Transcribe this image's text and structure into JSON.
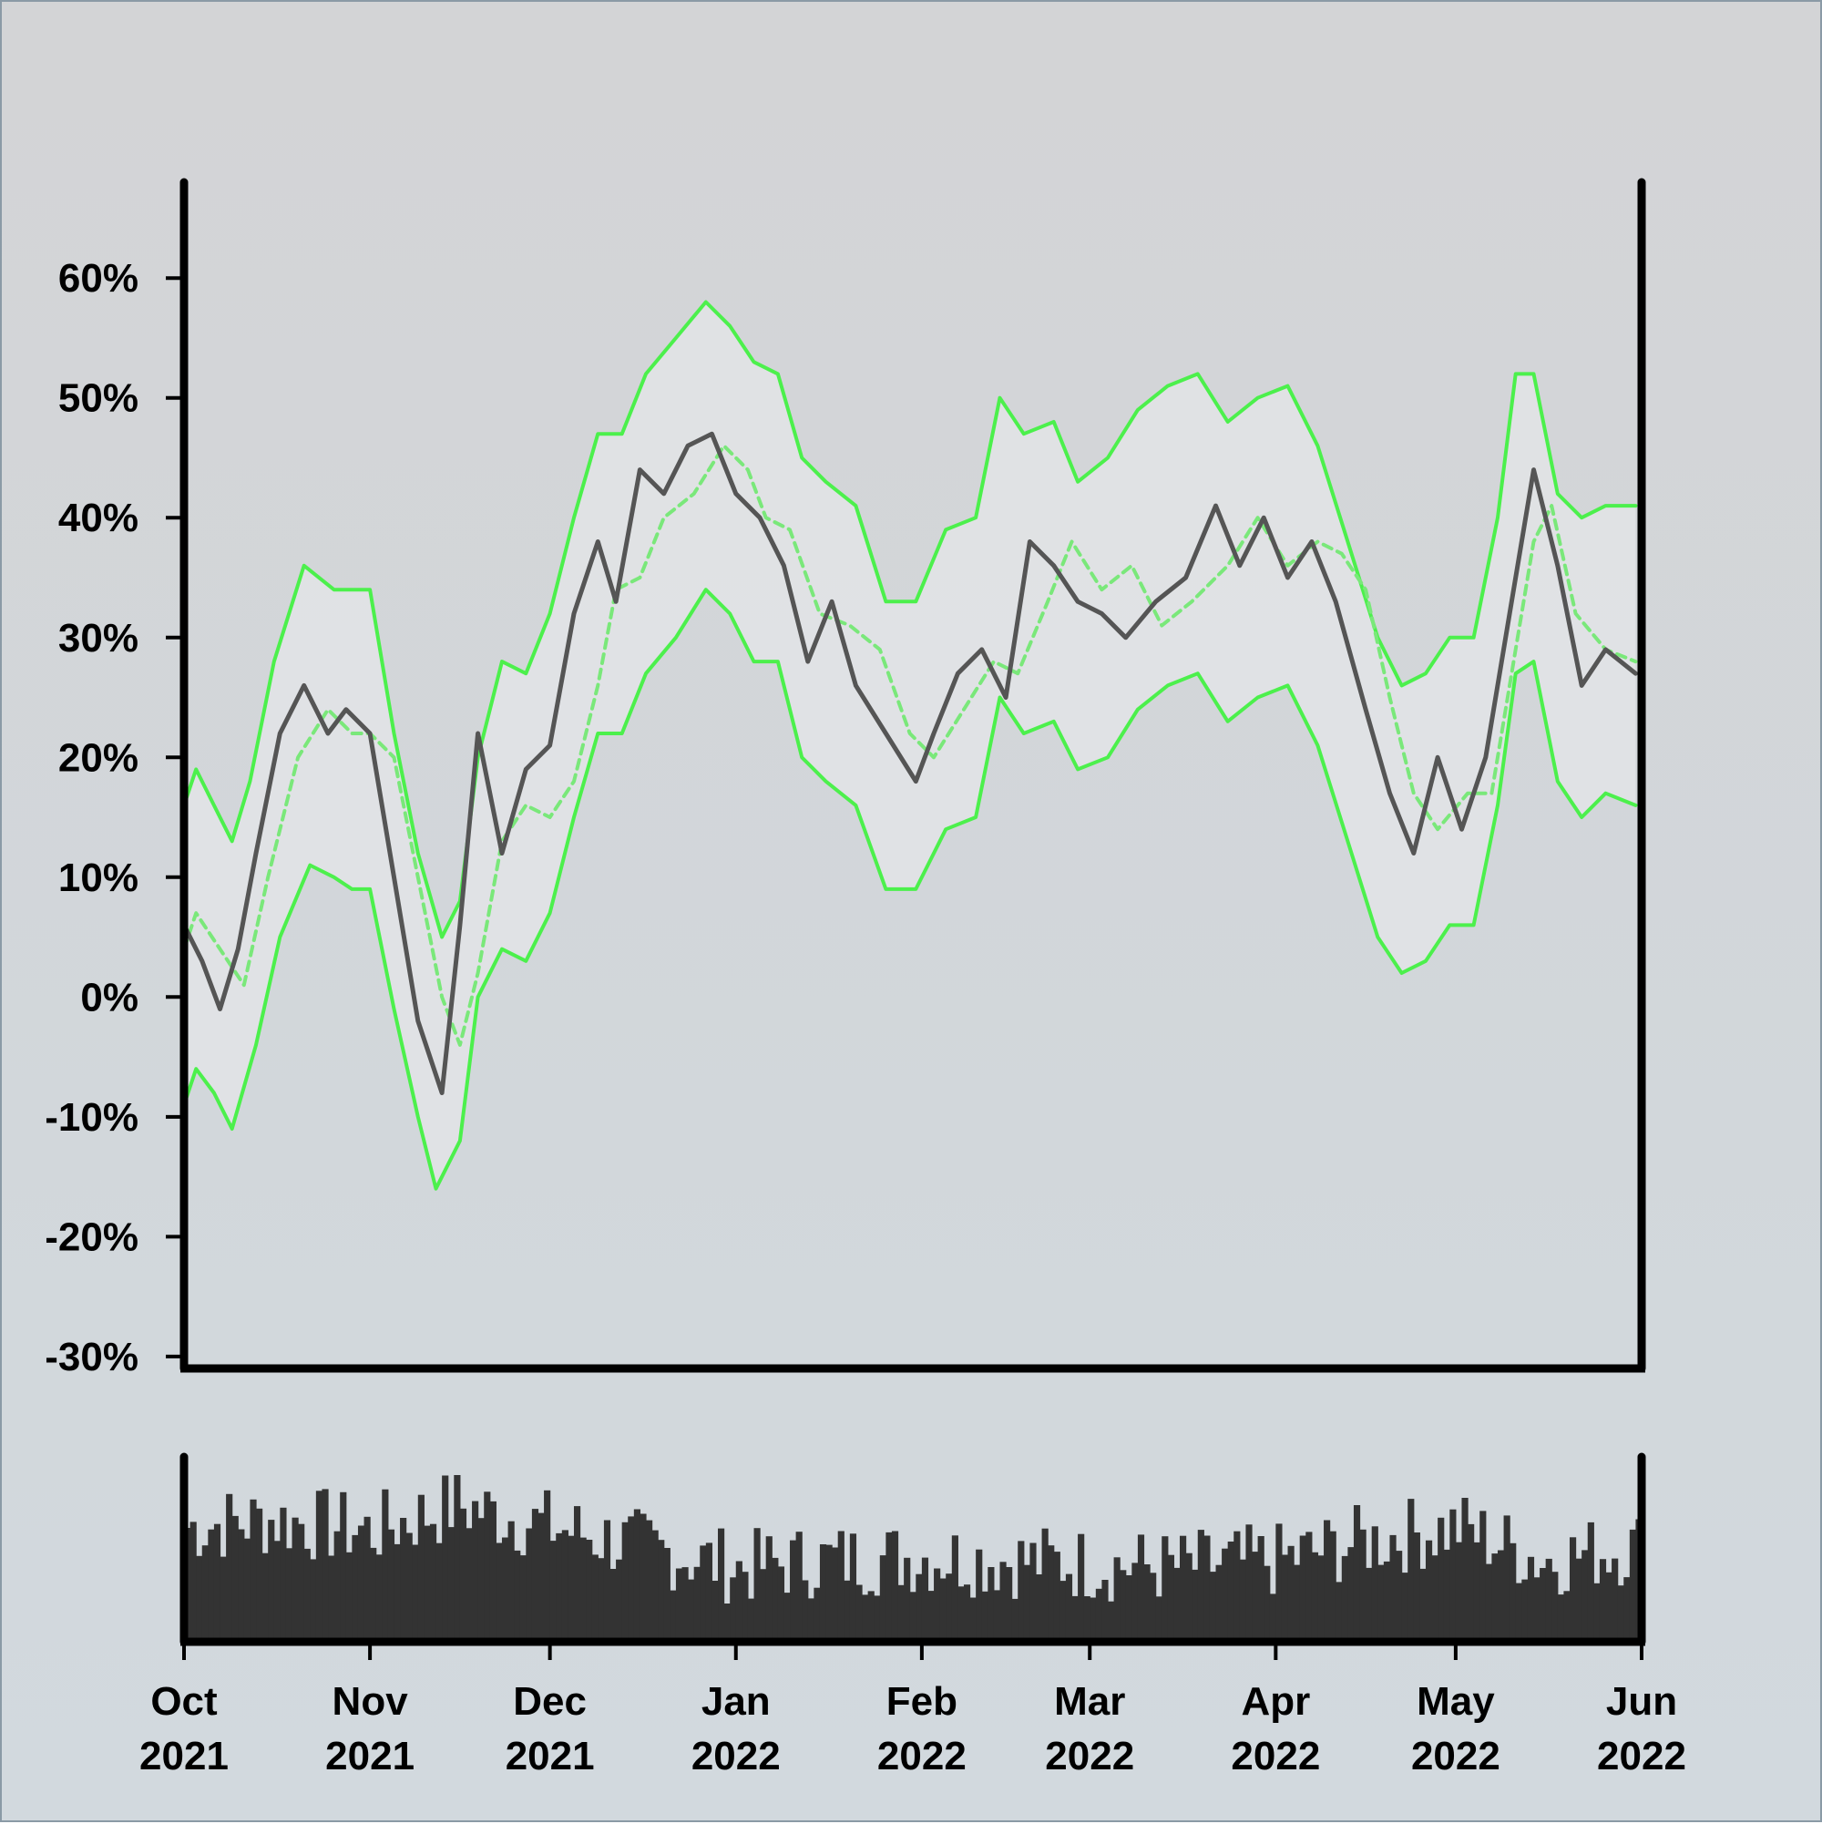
{
  "chart_data": [
    {
      "type": "line",
      "panel": "price-panel",
      "title": "",
      "xlabel": "",
      "ylabel": "",
      "x_range": [
        "2021-10-01",
        "2022-06-01"
      ],
      "ylim": [
        -31,
        68
      ],
      "y_ticks": [
        60,
        50,
        40,
        30,
        20,
        10,
        0,
        -10,
        -20,
        -30
      ],
      "y_tick_labels": [
        "60%",
        "50%",
        "40%",
        "30%",
        "20%",
        "10%",
        "0%",
        "-10%",
        "-20%",
        "-30%"
      ],
      "x_ticks": [
        "2021-10-01",
        "2021-11-01",
        "2021-12-01",
        "2022-01-01",
        "2022-02-01",
        "2022-03-01",
        "2022-04-01",
        "2022-05-01",
        "2022-06-01"
      ],
      "x_tick_labels": [
        {
          "month": "Oct",
          "year": "2021"
        },
        {
          "month": "Nov",
          "year": "2021"
        },
        {
          "month": "Dec",
          "year": "2021"
        },
        {
          "month": "Jan",
          "year": "2022"
        },
        {
          "month": "Feb",
          "year": "2022"
        },
        {
          "month": "Mar",
          "year": "2022"
        },
        {
          "month": "Apr",
          "year": "2022"
        },
        {
          "month": "May",
          "year": "2022"
        },
        {
          "month": "Jun",
          "year": "2022"
        }
      ],
      "grid": false,
      "series": [
        {
          "role": "price",
          "color": "#555555",
          "style": "solid",
          "x": [
            "2021-10-01",
            "2021-10-04",
            "2021-10-07",
            "2021-10-10",
            "2021-10-13",
            "2021-10-17",
            "2021-10-21",
            "2021-10-25",
            "2021-10-28",
            "2021-11-01",
            "2021-11-05",
            "2021-11-09",
            "2021-11-13",
            "2021-11-16",
            "2021-11-19",
            "2021-11-23",
            "2021-11-27",
            "2021-12-01",
            "2021-12-05",
            "2021-12-09",
            "2021-12-12",
            "2021-12-16",
            "2021-12-20",
            "2021-12-24",
            "2021-12-28",
            "2022-01-01",
            "2022-01-05",
            "2022-01-09",
            "2022-01-13",
            "2022-01-17",
            "2022-01-21",
            "2022-01-26",
            "2022-01-31",
            "2022-02-03",
            "2022-02-07",
            "2022-02-11",
            "2022-02-15",
            "2022-02-19",
            "2022-02-23",
            "2022-02-27",
            "2022-03-03",
            "2022-03-07",
            "2022-03-12",
            "2022-03-17",
            "2022-03-22",
            "2022-03-26",
            "2022-03-30",
            "2022-04-03",
            "2022-04-07",
            "2022-04-11",
            "2022-04-16",
            "2022-04-20",
            "2022-04-24",
            "2022-04-28",
            "2022-05-02",
            "2022-05-06",
            "2022-05-10",
            "2022-05-14",
            "2022-05-18",
            "2022-05-22",
            "2022-05-26",
            "2022-05-31"
          ],
          "y": [
            6,
            3,
            -1,
            4,
            12,
            22,
            26,
            22,
            24,
            22,
            10,
            -2,
            -8,
            6,
            22,
            12,
            19,
            21,
            32,
            38,
            33,
            44,
            42,
            46,
            47,
            42,
            40,
            36,
            28,
            33,
            26,
            22,
            18,
            22,
            27,
            29,
            25,
            38,
            36,
            33,
            32,
            30,
            33,
            35,
            41,
            36,
            40,
            35,
            38,
            33,
            24,
            17,
            12,
            20,
            14,
            20,
            32,
            44,
            36,
            26,
            29,
            27
          ]
        },
        {
          "role": "moving-average",
          "color": "#7ae87a",
          "style": "dashed",
          "x": [
            "2021-10-01",
            "2021-10-03",
            "2021-10-07",
            "2021-10-11",
            "2021-10-15",
            "2021-10-20",
            "2021-10-25",
            "2021-10-29",
            "2021-11-01",
            "2021-11-05",
            "2021-11-09",
            "2021-11-13",
            "2021-11-16",
            "2021-11-19",
            "2021-11-23",
            "2021-11-27",
            "2021-12-01",
            "2021-12-05",
            "2021-12-09",
            "2021-12-12",
            "2021-12-16",
            "2021-12-20",
            "2021-12-25",
            "2021-12-30",
            "2022-01-03",
            "2022-01-06",
            "2022-01-10",
            "2022-01-15",
            "2022-01-20",
            "2022-01-25",
            "2022-01-30",
            "2022-02-03",
            "2022-02-08",
            "2022-02-13",
            "2022-02-17",
            "2022-02-22",
            "2022-02-26",
            "2022-03-03",
            "2022-03-08",
            "2022-03-13",
            "2022-03-18",
            "2022-03-24",
            "2022-03-29",
            "2022-04-03",
            "2022-04-08",
            "2022-04-12",
            "2022-04-16",
            "2022-04-20",
            "2022-04-24",
            "2022-04-28",
            "2022-05-03",
            "2022-05-07",
            "2022-05-10",
            "2022-05-14",
            "2022-05-17",
            "2022-05-21",
            "2022-05-26",
            "2022-05-31"
          ],
          "y": [
            4,
            7,
            4,
            1,
            10,
            20,
            24,
            22,
            22,
            20,
            10,
            0,
            -4,
            2,
            13,
            16,
            15,
            18,
            26,
            34,
            35,
            40,
            42,
            46,
            44,
            40,
            39,
            32,
            31,
            29,
            22,
            20,
            24,
            28,
            27,
            33,
            38,
            34,
            36,
            31,
            33,
            36,
            40,
            36,
            38,
            37,
            34,
            25,
            17,
            14,
            17,
            17,
            26,
            38,
            41,
            32,
            29,
            28
          ]
        },
        {
          "role": "upper-band",
          "color": "#4cf04c",
          "style": "solid",
          "x": [
            "2021-10-01",
            "2021-10-03",
            "2021-10-06",
            "2021-10-09",
            "2021-10-12",
            "2021-10-16",
            "2021-10-21",
            "2021-10-26",
            "2021-10-29",
            "2021-11-01",
            "2021-11-05",
            "2021-11-09",
            "2021-11-13",
            "2021-11-16",
            "2021-11-19",
            "2021-11-23",
            "2021-11-27",
            "2021-12-01",
            "2021-12-05",
            "2021-12-09",
            "2021-12-13",
            "2021-12-17",
            "2021-12-22",
            "2021-12-27",
            "2021-12-31",
            "2022-01-04",
            "2022-01-08",
            "2022-01-12",
            "2022-01-16",
            "2022-01-21",
            "2022-01-26",
            "2022-01-31",
            "2022-02-05",
            "2022-02-10",
            "2022-02-14",
            "2022-02-18",
            "2022-02-23",
            "2022-02-27",
            "2022-03-04",
            "2022-03-09",
            "2022-03-14",
            "2022-03-19",
            "2022-03-24",
            "2022-03-29",
            "2022-04-03",
            "2022-04-08",
            "2022-04-13",
            "2022-04-18",
            "2022-04-22",
            "2022-04-26",
            "2022-04-30",
            "2022-05-04",
            "2022-05-08",
            "2022-05-11",
            "2022-05-14",
            "2022-05-18",
            "2022-05-22",
            "2022-05-26",
            "2022-05-31"
          ],
          "y": [
            16,
            19,
            16,
            13,
            18,
            28,
            36,
            34,
            34,
            34,
            22,
            12,
            5,
            8,
            20,
            28,
            27,
            32,
            40,
            47,
            47,
            52,
            55,
            58,
            56,
            53,
            52,
            45,
            43,
            41,
            33,
            33,
            39,
            40,
            50,
            47,
            48,
            43,
            45,
            49,
            51,
            52,
            48,
            50,
            51,
            46,
            38,
            30,
            26,
            27,
            30,
            30,
            40,
            52,
            52,
            42,
            40,
            41,
            41
          ]
        },
        {
          "role": "lower-band",
          "color": "#4cf04c",
          "style": "solid",
          "x": [
            "2021-10-01",
            "2021-10-03",
            "2021-10-06",
            "2021-10-09",
            "2021-10-13",
            "2021-10-17",
            "2021-10-22",
            "2021-10-26",
            "2021-10-29",
            "2021-11-01",
            "2021-11-05",
            "2021-11-09",
            "2021-11-12",
            "2021-11-16",
            "2021-11-19",
            "2021-11-23",
            "2021-11-27",
            "2021-12-01",
            "2021-12-05",
            "2021-12-09",
            "2021-12-13",
            "2021-12-17",
            "2021-12-22",
            "2021-12-27",
            "2021-12-31",
            "2022-01-04",
            "2022-01-08",
            "2022-01-12",
            "2022-01-16",
            "2022-01-21",
            "2022-01-26",
            "2022-01-31",
            "2022-02-05",
            "2022-02-10",
            "2022-02-14",
            "2022-02-18",
            "2022-02-23",
            "2022-02-27",
            "2022-03-04",
            "2022-03-09",
            "2022-03-14",
            "2022-03-19",
            "2022-03-24",
            "2022-03-29",
            "2022-04-03",
            "2022-04-08",
            "2022-04-13",
            "2022-04-18",
            "2022-04-22",
            "2022-04-26",
            "2022-04-30",
            "2022-05-04",
            "2022-05-08",
            "2022-05-11",
            "2022-05-14",
            "2022-05-18",
            "2022-05-22",
            "2022-05-26",
            "2022-05-31"
          ],
          "y": [
            -9,
            -6,
            -8,
            -11,
            -4,
            5,
            11,
            10,
            9,
            9,
            -1,
            -10,
            -16,
            -12,
            0,
            4,
            3,
            7,
            15,
            22,
            22,
            27,
            30,
            34,
            32,
            28,
            28,
            20,
            18,
            16,
            9,
            9,
            14,
            15,
            25,
            22,
            23,
            19,
            20,
            24,
            26,
            27,
            23,
            25,
            26,
            21,
            13,
            5,
            2,
            3,
            6,
            6,
            16,
            27,
            28,
            18,
            15,
            17,
            16
          ]
        }
      ]
    },
    {
      "type": "bar",
      "panel": "volume-panel",
      "color": "#333333",
      "title": "",
      "ylabel": "",
      "x_range": [
        "2021-10-01",
        "2022-06-01"
      ],
      "ylim": [
        0,
        1
      ],
      "volume_profile_x": [
        "2021-10-01",
        "2021-10-15",
        "2021-11-01",
        "2021-11-15",
        "2021-12-01",
        "2021-12-15",
        "2022-01-01",
        "2022-01-15",
        "2022-02-01",
        "2022-02-15",
        "2022-03-01",
        "2022-03-15",
        "2022-04-01",
        "2022-04-15",
        "2022-05-01",
        "2022-05-15",
        "2022-06-01"
      ],
      "volume_profile_y": [
        0.62,
        0.66,
        0.6,
        0.74,
        0.62,
        0.52,
        0.4,
        0.44,
        0.46,
        0.44,
        0.42,
        0.4,
        0.44,
        0.54,
        0.62,
        0.44,
        0.52
      ]
    }
  ]
}
